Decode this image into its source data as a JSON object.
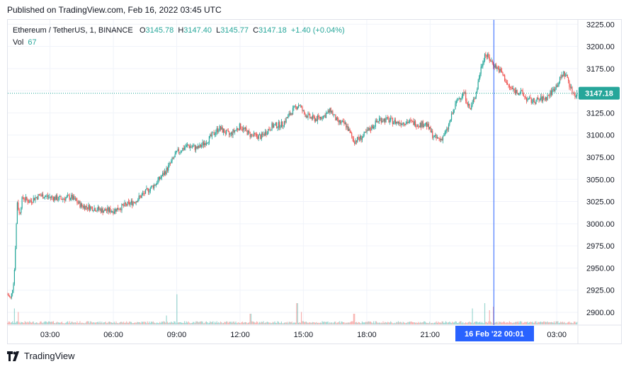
{
  "published": "Published on TradingView.com, Feb 16, 2022 03:45 UTC",
  "legend": {
    "symbol": "Ethereum / TetherUS, 1, BINANCE",
    "open_label": "O",
    "open": "3145.78",
    "high_label": "H",
    "high": "3147.40",
    "low_label": "L",
    "low": "3145.77",
    "close_label": "C",
    "close": "3147.18",
    "change": "+1.40 (+0.04%)",
    "vol_label": "Vol",
    "vol": "67"
  },
  "footer": {
    "brand": "TradingView",
    "logo_icon": "tradingview-logo-icon"
  },
  "colors": {
    "up": "#26a69a",
    "down": "#ef5350",
    "crosshair": "#2962ff",
    "price_tag": "#26a69a",
    "grid": "#f0f3fa"
  },
  "chart_data": {
    "type": "candlestick",
    "y_ticks": [
      "3225.00",
      "3200.00",
      "3175.00",
      "3150.00",
      "3125.00",
      "3100.00",
      "3075.00",
      "3050.00",
      "3025.00",
      "3000.00",
      "2975.00",
      "2950.00",
      "2925.00",
      "2900.00"
    ],
    "x_ticks": [
      "03:00",
      "06:00",
      "09:00",
      "12:00",
      "15:00",
      "18:00",
      "21:00",
      "03:00"
    ],
    "ylim": [
      2888,
      3230
    ],
    "current_price": "3147.18",
    "crosshair_label": "16 Feb '22   00:01",
    "crosshair_hour": 24.02,
    "hour_range": [
      1.0,
      28.0
    ],
    "x_tick_hours": [
      3,
      6,
      9,
      12,
      15,
      18,
      21,
      27
    ],
    "path": [
      [
        1.0,
        2920
      ],
      [
        1.15,
        2915
      ],
      [
        1.3,
        2940
      ],
      [
        1.45,
        3025
      ],
      [
        1.55,
        3010
      ],
      [
        1.7,
        3030
      ],
      [
        2.0,
        3025
      ],
      [
        2.5,
        3032
      ],
      [
        3.0,
        3030
      ],
      [
        3.5,
        3028
      ],
      [
        4.0,
        3030
      ],
      [
        4.5,
        3020
      ],
      [
        5.0,
        3018
      ],
      [
        5.5,
        3015
      ],
      [
        6.0,
        3015
      ],
      [
        6.5,
        3020
      ],
      [
        7.0,
        3025
      ],
      [
        7.5,
        3035
      ],
      [
        8.0,
        3045
      ],
      [
        8.5,
        3060
      ],
      [
        9.0,
        3080
      ],
      [
        9.5,
        3088
      ],
      [
        10.0,
        3085
      ],
      [
        10.5,
        3095
      ],
      [
        11.0,
        3108
      ],
      [
        11.5,
        3100
      ],
      [
        12.0,
        3110
      ],
      [
        12.5,
        3100
      ],
      [
        13.0,
        3098
      ],
      [
        13.5,
        3110
      ],
      [
        14.0,
        3112
      ],
      [
        14.5,
        3128
      ],
      [
        14.8,
        3135
      ],
      [
        15.0,
        3125
      ],
      [
        15.3,
        3120
      ],
      [
        15.6,
        3118
      ],
      [
        16.0,
        3122
      ],
      [
        16.3,
        3128
      ],
      [
        16.6,
        3115
      ],
      [
        17.0,
        3112
      ],
      [
        17.4,
        3093
      ],
      [
        17.8,
        3098
      ],
      [
        18.2,
        3108
      ],
      [
        18.6,
        3118
      ],
      [
        19.0,
        3117
      ],
      [
        19.5,
        3114
      ],
      [
        20.0,
        3115
      ],
      [
        20.5,
        3112
      ],
      [
        20.8,
        3113
      ],
      [
        21.0,
        3105
      ],
      [
        21.2,
        3097
      ],
      [
        21.5,
        3095
      ],
      [
        21.8,
        3105
      ],
      [
        22.0,
        3120
      ],
      [
        22.3,
        3140
      ],
      [
        22.6,
        3148
      ],
      [
        22.9,
        3128
      ],
      [
        23.2,
        3150
      ],
      [
        23.4,
        3175
      ],
      [
        23.6,
        3192
      ],
      [
        23.8,
        3186
      ],
      [
        24.0,
        3180
      ],
      [
        24.4,
        3170
      ],
      [
        24.7,
        3155
      ],
      [
        25.0,
        3150
      ],
      [
        25.3,
        3148
      ],
      [
        25.6,
        3140
      ],
      [
        25.9,
        3138
      ],
      [
        26.2,
        3140
      ],
      [
        26.5,
        3142
      ],
      [
        26.8,
        3150
      ],
      [
        27.1,
        3160
      ],
      [
        27.3,
        3170
      ],
      [
        27.5,
        3165
      ],
      [
        27.7,
        3150
      ],
      [
        27.9,
        3145
      ],
      [
        28.0,
        3147
      ]
    ],
    "volume_spikes": [
      [
        1.3,
        0.45
      ],
      [
        1.5,
        0.35
      ],
      [
        8.5,
        0.25
      ],
      [
        9.0,
        0.85
      ],
      [
        12.5,
        0.3
      ],
      [
        14.7,
        0.6
      ],
      [
        14.9,
        0.35
      ],
      [
        17.4,
        0.3
      ],
      [
        23.0,
        0.45
      ],
      [
        23.6,
        0.6
      ],
      [
        23.8,
        0.4
      ],
      [
        24.0,
        0.5
      ]
    ]
  }
}
